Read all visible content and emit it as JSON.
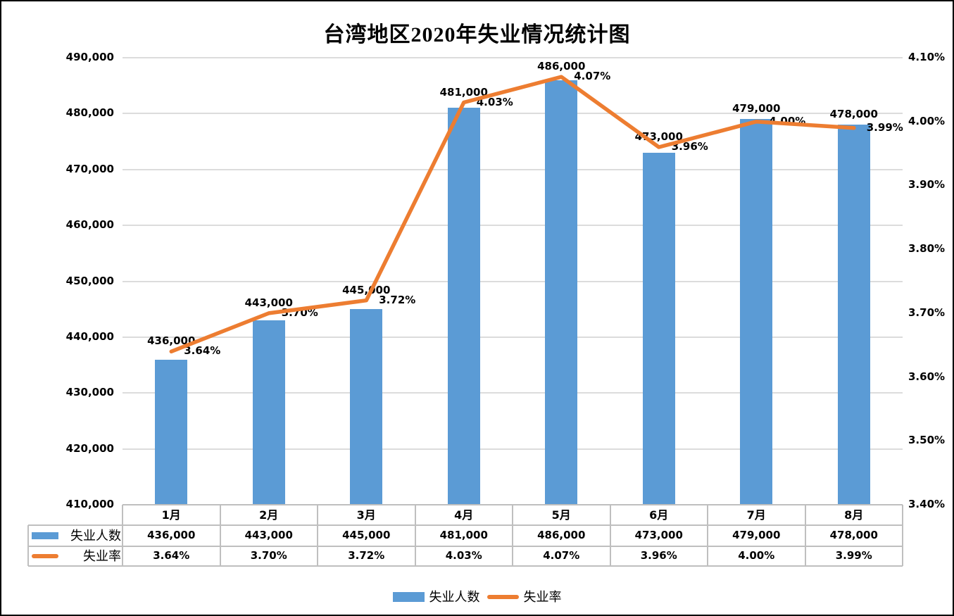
{
  "chart_data": {
    "type": "combo-bar-line",
    "title": "台湾地区2020年失业情况统计图",
    "categories": [
      "1月",
      "2月",
      "3月",
      "4月",
      "5月",
      "6月",
      "7月",
      "8月"
    ],
    "series": [
      {
        "name": "失业人数",
        "type": "bar",
        "axis": "left",
        "color": "#5B9BD5",
        "values": [
          436000,
          443000,
          445000,
          481000,
          486000,
          473000,
          479000,
          478000
        ],
        "labels": [
          "436,000",
          "443,000",
          "445,000",
          "481,000",
          "486,000",
          "473,000",
          "479,000",
          "478,000"
        ]
      },
      {
        "name": "失业率",
        "type": "line",
        "axis": "right",
        "color": "#ED7D31",
        "values": [
          3.64,
          3.7,
          3.72,
          4.03,
          4.07,
          3.96,
          4.0,
          3.99
        ],
        "labels": [
          "3.64%",
          "3.70%",
          "3.72%",
          "4.03%",
          "4.07%",
          "3.96%",
          "4.00%",
          "3.99%"
        ]
      }
    ],
    "left_axis": {
      "min": 410000,
      "max": 490000,
      "step": 10000,
      "tick_labels": [
        "490,000",
        "480,000",
        "470,000",
        "460,000",
        "450,000",
        "440,000",
        "430,000",
        "420,000",
        "410,000"
      ]
    },
    "right_axis": {
      "min": 3.4,
      "max": 4.1,
      "step": 0.1,
      "tick_labels": [
        "4.10%",
        "4.00%",
        "3.90%",
        "3.80%",
        "3.70%",
        "3.60%",
        "3.50%",
        "3.40%"
      ]
    },
    "gridlines": true,
    "legend_position": "bottom",
    "legend": [
      "失业人数",
      "失业率"
    ],
    "data_table": {
      "shown": true,
      "row_headers": [
        "失业人数",
        "失业率"
      ]
    }
  },
  "colors": {
    "bar": "#5B9BD5",
    "line": "#ED7D31",
    "gridline": "#DCDCDC",
    "table_border": "#BFBFBF",
    "text": "#000000",
    "frame_border": "#000000",
    "background": "#FFFFFF"
  }
}
